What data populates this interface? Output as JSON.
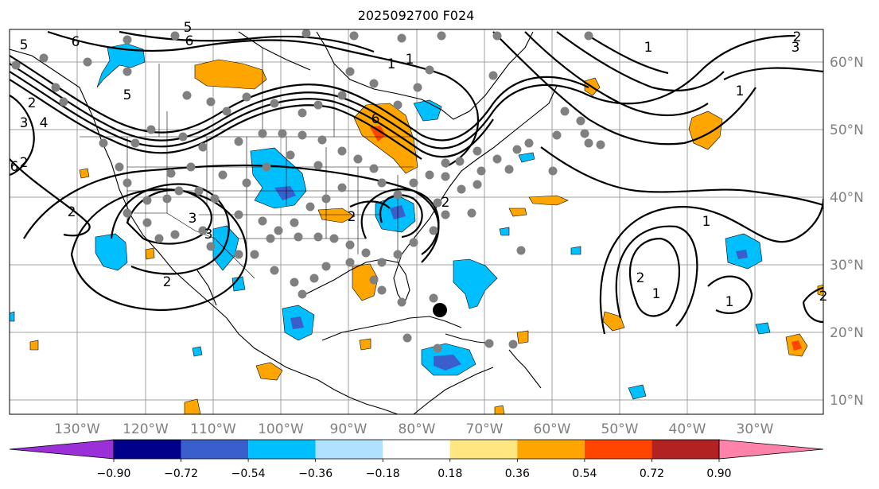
{
  "title": "2025092700 F024",
  "lon_labels": [
    "130°W",
    "120°W",
    "110°W",
    "100°W",
    "90°W",
    "80°W",
    "70°W",
    "60°W",
    "50°W",
    "40°W",
    "30°W"
  ],
  "lat_labels": [
    "60°N",
    "50°N",
    "40°N",
    "30°N",
    "20°N",
    "10°N"
  ],
  "colorbar": {
    "ticks": [
      "−0.90",
      "−0.72",
      "−0.54",
      "−0.36",
      "−0.18",
      "0.18",
      "0.36",
      "0.54",
      "0.72",
      "0.90"
    ],
    "colors": [
      "#9b30d9",
      "#00008b",
      "#3a5fcd",
      "#00bfff",
      "#b0e2ff",
      "#ffffff",
      "#ffe680",
      "#ffa500",
      "#ff4500",
      "#b22222",
      "#ff82ab"
    ]
  },
  "contour_labels": [
    "5",
    "6",
    "5",
    "6",
    "1",
    "4",
    "3",
    "2",
    "6",
    "2",
    "5",
    "2",
    "6",
    "1",
    "2",
    "3",
    "3",
    "2",
    "2",
    "1",
    "2",
    "3",
    "1",
    "1",
    "1",
    "2",
    "1",
    "2"
  ],
  "marker": {
    "type": "storm-center",
    "color": "#000000"
  },
  "station_color": "#808080"
}
